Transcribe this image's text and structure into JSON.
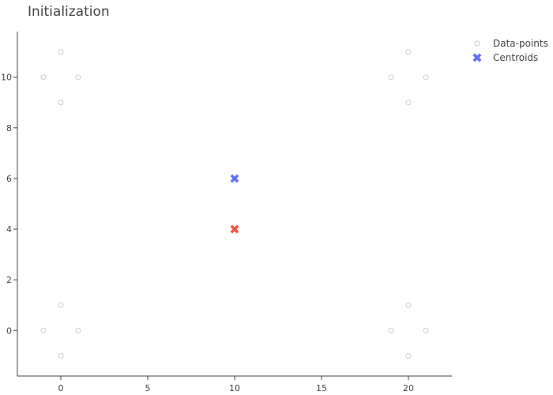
{
  "chart_data": {
    "type": "scatter",
    "title": "Initialization",
    "xlabel": "",
    "ylabel": "",
    "xlim": [
      -2.5,
      22.5
    ],
    "ylim": [
      -1.8,
      11.8
    ],
    "xticks": [
      0,
      5,
      10,
      15,
      20
    ],
    "yticks": [
      0,
      2,
      4,
      6,
      8,
      10
    ],
    "grid": false,
    "legend_position": "top-right",
    "series": [
      {
        "name": "Data-points",
        "marker": "open-circle",
        "color": "#cccccc",
        "points": [
          {
            "x": 0,
            "y": 11
          },
          {
            "x": -1,
            "y": 10
          },
          {
            "x": 1,
            "y": 10
          },
          {
            "x": 0,
            "y": 9
          },
          {
            "x": 20,
            "y": 11
          },
          {
            "x": 19,
            "y": 10
          },
          {
            "x": 21,
            "y": 10
          },
          {
            "x": 20,
            "y": 9
          },
          {
            "x": 0,
            "y": 1
          },
          {
            "x": -1,
            "y": 0
          },
          {
            "x": 1,
            "y": 0
          },
          {
            "x": 0,
            "y": -1
          },
          {
            "x": 20,
            "y": 1
          },
          {
            "x": 19,
            "y": 0
          },
          {
            "x": 21,
            "y": 0
          },
          {
            "x": 20,
            "y": -1
          }
        ]
      },
      {
        "name": "Centroids",
        "marker": "x",
        "color": "#636efa",
        "points": [
          {
            "x": 10,
            "y": 6,
            "color": "#636efa"
          },
          {
            "x": 10,
            "y": 4,
            "color": "#ef553b"
          }
        ]
      }
    ]
  }
}
